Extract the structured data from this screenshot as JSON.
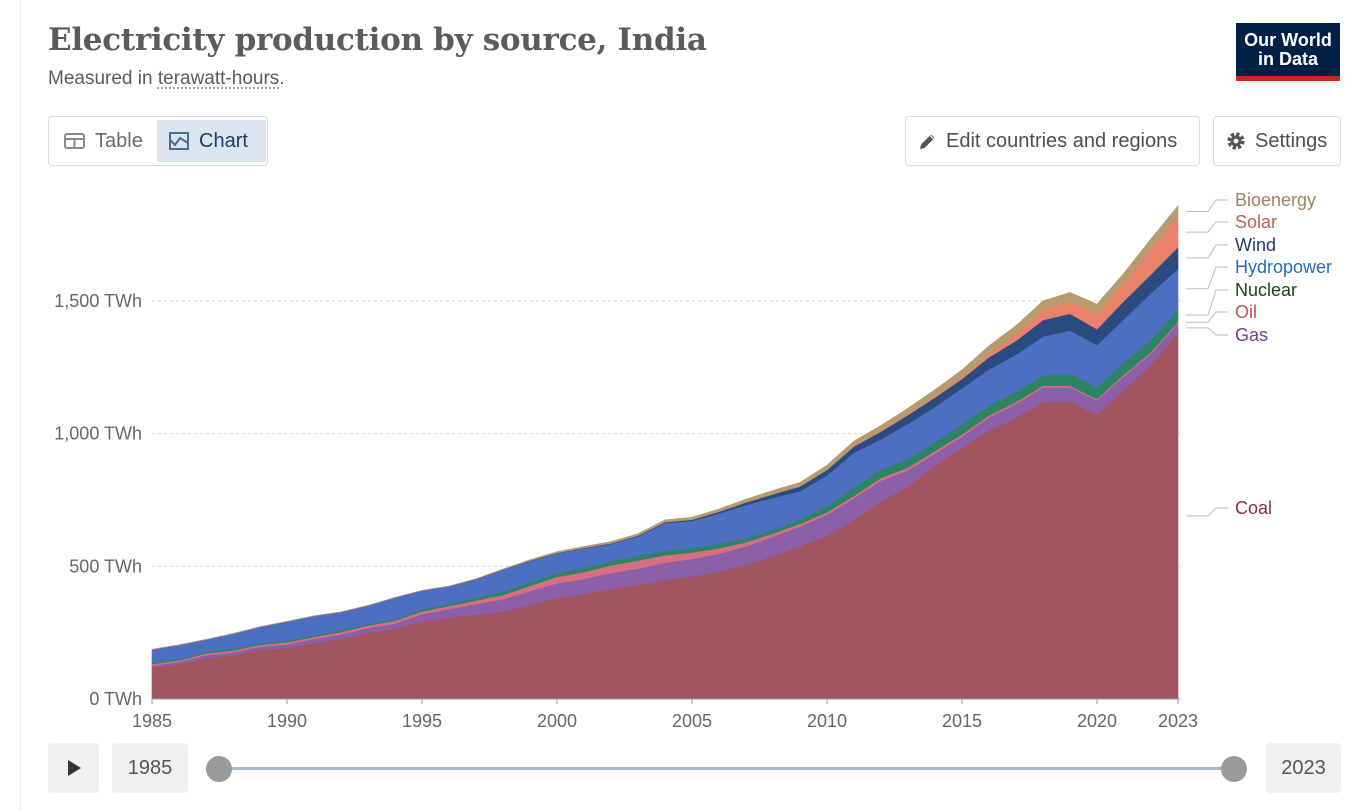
{
  "header": {
    "title": "Electricity production by source, India",
    "subtitle_prefix": "Measured in ",
    "subtitle_unit": "terawatt-hours",
    "subtitle_suffix": ".",
    "logo_line1": "Our World",
    "logo_line2": "in Data"
  },
  "controls": {
    "tab_table": "Table",
    "tab_chart": "Chart",
    "edit_label": "Edit countries and regions",
    "settings_label": "Settings",
    "icons": {
      "table": "table-icon",
      "chart": "chart-icon",
      "edit": "pencil-icon",
      "settings": "gear-icon",
      "play": "play-icon"
    }
  },
  "timeline": {
    "start_label": "1985",
    "end_label": "2023"
  },
  "chart_data": {
    "type": "area",
    "stacked": true,
    "title": "Electricity production by source, India",
    "subtitle": "Measured in terawatt-hours.",
    "x": [
      1985,
      1986,
      1987,
      1988,
      1989,
      1990,
      1991,
      1992,
      1993,
      1994,
      1995,
      1996,
      1997,
      1998,
      1999,
      2000,
      2001,
      2002,
      2003,
      2004,
      2005,
      2006,
      2007,
      2008,
      2009,
      2010,
      2011,
      2012,
      2013,
      2014,
      2015,
      2016,
      2017,
      2018,
      2019,
      2020,
      2021,
      2022,
      2023
    ],
    "x_ticks": [
      1985,
      1990,
      1995,
      2000,
      2005,
      2010,
      2015,
      2020,
      2023
    ],
    "y_ticks": [
      0,
      500,
      1000,
      1500
    ],
    "y_tick_labels": [
      "0 TWh",
      "500 TWh",
      "1,000 TWh",
      "1,500 TWh"
    ],
    "ylim": [
      0,
      1950
    ],
    "grid": "horizontal dashed",
    "legend": "right, line-end labels",
    "series": [
      {
        "name": "Coal",
        "color": "#a2545f",
        "label_color": "#883039",
        "values": [
          118,
          131,
          155,
          165,
          185,
          193,
          212,
          227,
          250,
          265,
          292,
          307,
          318,
          330,
          355,
          380,
          395,
          415,
          430,
          450,
          462,
          480,
          505,
          540,
          575,
          615,
          675,
          745,
          800,
          880,
          945,
          1012,
          1060,
          1120,
          1120,
          1070,
          1165,
          1260,
          1380
        ]
      },
      {
        "name": "Gas",
        "color": "#8d5fa8",
        "label_color": "#6d3e91",
        "values": [
          8,
          9,
          10,
          11,
          12,
          13,
          14,
          16,
          18,
          20,
          28,
          32,
          40,
          46,
          52,
          56,
          58,
          60,
          62,
          64,
          66,
          68,
          70,
          72,
          75,
          80,
          82,
          78,
          62,
          45,
          44,
          50,
          52,
          54,
          54,
          56,
          52,
          42,
          37
        ]
      },
      {
        "name": "Oil",
        "color": "#d67081",
        "label_color": "#c15065",
        "values": [
          6,
          6,
          7,
          7,
          7,
          8,
          8,
          9,
          9,
          10,
          10,
          11,
          13,
          16,
          20,
          24,
          26,
          28,
          30,
          28,
          24,
          20,
          16,
          12,
          10,
          9,
          9,
          10,
          10,
          10,
          8,
          7,
          7,
          7,
          6,
          5,
          6,
          6,
          6
        ]
      },
      {
        "name": "Nuclear",
        "color": "#2c8465",
        "label_color": "#18470f",
        "values": [
          4,
          5,
          5,
          6,
          6,
          6,
          6,
          6,
          5,
          5,
          7,
          8,
          10,
          12,
          13,
          14,
          15,
          17,
          17,
          17,
          17,
          17,
          15,
          14,
          16,
          24,
          31,
          32,
          33,
          34,
          37,
          38,
          38,
          38,
          46,
          43,
          47,
          46,
          48
        ]
      },
      {
        "name": "Hydropower",
        "color": "#4c6fc1",
        "label_color": "#286bbb",
        "values": [
          51,
          53,
          47,
          57,
          62,
          72,
          73,
          70,
          70,
          82,
          72,
          67,
          70,
          83,
          80,
          75,
          74,
          64,
          74,
          104,
          102,
          114,
          125,
          120,
          107,
          115,
          131,
          114,
          132,
          132,
          137,
          135,
          141,
          147,
          163,
          160,
          162,
          175,
          150
        ]
      },
      {
        "name": "Wind",
        "color": "#2b4b80",
        "label_color": "#1a3e6b",
        "values": [
          0,
          0,
          0,
          0,
          0,
          0,
          0,
          0,
          0,
          0,
          0,
          0,
          1,
          1,
          2,
          2,
          2,
          3,
          3,
          4,
          5,
          7,
          10,
          14,
          18,
          21,
          24,
          29,
          33,
          35,
          35,
          46,
          52,
          62,
          63,
          60,
          68,
          71,
          82
        ]
      },
      {
        "name": "Solar",
        "color": "#e9816c",
        "label_color": "#bc6152",
        "values": [
          0,
          0,
          0,
          0,
          0,
          0,
          0,
          0,
          0,
          0,
          0,
          0,
          0,
          0,
          0,
          0,
          0,
          0,
          0,
          0,
          0,
          0,
          0,
          0,
          0,
          0,
          1,
          2,
          3,
          5,
          7,
          14,
          26,
          39,
          46,
          58,
          68,
          95,
          113
        ]
      },
      {
        "name": "Bioenergy",
        "color": "#b79a6d",
        "label_color": "#a2815c",
        "values": [
          0,
          0,
          0,
          0,
          0,
          0,
          0,
          0,
          0,
          0,
          0,
          0,
          1,
          2,
          3,
          4,
          5,
          6,
          7,
          8,
          9,
          10,
          12,
          14,
          15,
          17,
          19,
          21,
          23,
          25,
          27,
          29,
          31,
          33,
          34,
          36,
          37,
          39,
          42
        ]
      }
    ]
  }
}
